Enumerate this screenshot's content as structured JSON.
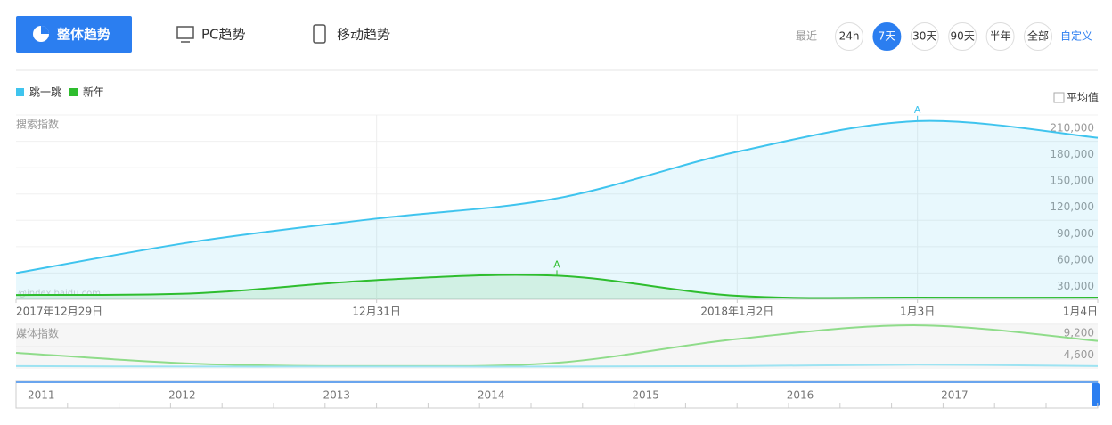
{
  "ui": {
    "tabs": [
      "整体趋势",
      "PC趋势",
      "移动趋势"
    ],
    "recent_label": "最近",
    "ranges": [
      "24h",
      "7天",
      "30天",
      "90天",
      "半年",
      "全部"
    ],
    "active_range": 1,
    "custom": "自定义",
    "average": "平均值",
    "watermark": "@index.baidu.com",
    "timeline_years": [
      "2011",
      "2012",
      "2013",
      "2014",
      "2015",
      "2016",
      "2017"
    ]
  },
  "chart_data": [
    {
      "type": "area",
      "ylabel": "搜索指数",
      "categories": [
        "2017年12月29日",
        null,
        "12月31日",
        null,
        "2018年1月2日",
        "1月3日",
        "1月4日"
      ],
      "series": [
        {
          "name": "跳一跳",
          "color": "#3fc4ee",
          "values": [
            30000,
            66000,
            92000,
            115000,
            168000,
            203000,
            184000
          ]
        },
        {
          "name": "新年",
          "color": "#2ebd2e",
          "values": [
            5000,
            7000,
            22000,
            27000,
            4000,
            2000,
            2000
          ]
        }
      ],
      "annotations": [
        {
          "series": 0,
          "index": 5,
          "text": "A"
        },
        {
          "series": 1,
          "index": 3,
          "text": "A"
        }
      ],
      "ylim": [
        0,
        210000
      ],
      "yticks": [
        {
          "value": 30000,
          "label": "30,000"
        },
        {
          "value": 60000,
          "label": "60,000"
        },
        {
          "value": 90000,
          "label": "90,000"
        },
        {
          "value": 120000,
          "label": "120,000"
        },
        {
          "value": 150000,
          "label": "150,000"
        },
        {
          "value": 180000,
          "label": "180,000"
        },
        {
          "value": 210000,
          "label": "210,000"
        }
      ],
      "grid": true
    },
    {
      "type": "line",
      "ylabel": "媒体指数",
      "series": [
        {
          "color": "#8fdc8a",
          "values": [
            3200,
            900,
            400,
            1100,
            6100,
            9000,
            5700
          ]
        },
        {
          "color": "#9de3f2",
          "values": [
            400,
            300,
            300,
            300,
            400,
            700,
            400
          ]
        }
      ],
      "ylim": [
        0,
        9200
      ],
      "yticks": [
        {
          "value": 4600,
          "label": "4,600"
        },
        {
          "value": 9200,
          "label": "9,200"
        }
      ],
      "grid": true
    }
  ]
}
